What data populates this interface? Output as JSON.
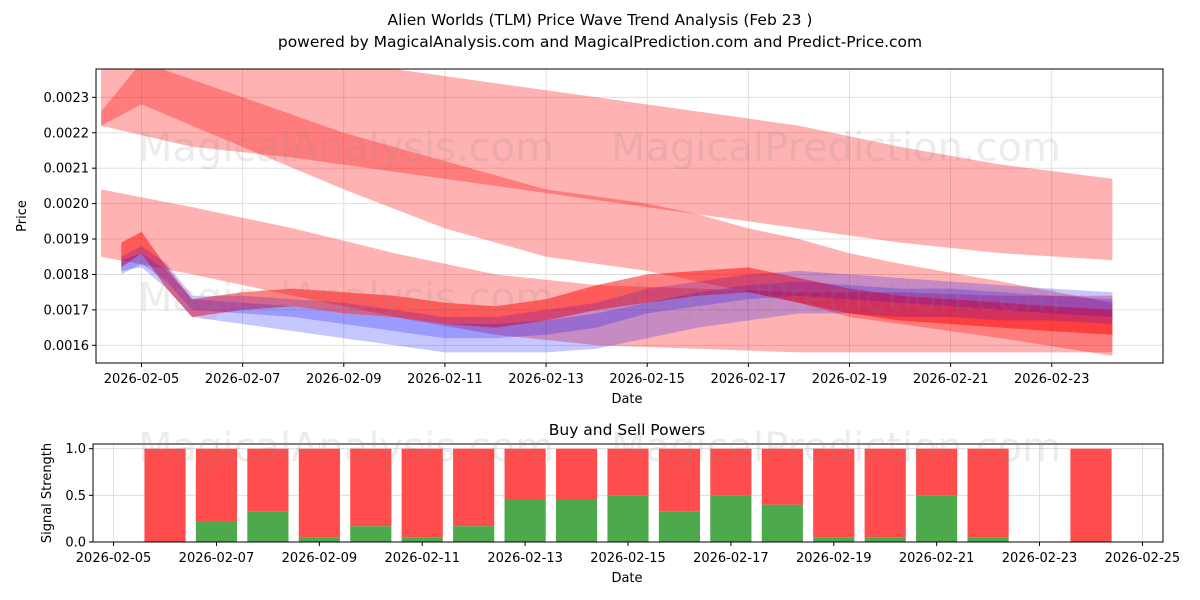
{
  "header": {
    "title": "Alien Worlds (TLM) Price Wave Trend Analysis (Feb 23 )",
    "subtitle": "powered by MagicalAnalysis.com and MagicalPrediction.com and Predict-Price.com"
  },
  "watermarks": {
    "left": "MagicalAnalysis.com",
    "right": "MagicalPrediction.com"
  },
  "colors": {
    "red": "#ff0000",
    "blue": "#0000ff",
    "buy": "#4caa4c",
    "sell": "#ff4c4c"
  },
  "chart_data": [
    {
      "type": "area",
      "title": "",
      "xlabel": "Date",
      "ylabel": "Price",
      "xlim": [
        "2026-02-04.1",
        "2026-02-25.2"
      ],
      "ylim": [
        0.00155,
        0.00238
      ],
      "grid": true,
      "x_ticks": [
        "2026-02-05",
        "2026-02-07",
        "2026-02-09",
        "2026-02-11",
        "2026-02-13",
        "2026-02-15",
        "2026-02-17",
        "2026-02-19",
        "2026-02-21",
        "2026-02-23"
      ],
      "y_ticks": [
        "0.0016",
        "0.0017",
        "0.0018",
        "0.0019",
        "0.0020",
        "0.0021",
        "0.0022",
        "0.0023"
      ],
      "red_bands": [
        {
          "x": [
            4.2,
            6,
            8,
            10,
            12,
            14,
            16,
            18,
            20,
            22,
            24.2
          ],
          "lower": [
            0.00222,
            0.00216,
            0.00213,
            0.00209,
            0.00205,
            0.00201,
            0.00197,
            0.00193,
            0.00189,
            0.00186,
            0.00184
          ],
          "upper": [
            0.0024,
            0.0024,
            0.0024,
            0.00238,
            0.00234,
            0.0023,
            0.00226,
            0.00222,
            0.00216,
            0.00211,
            0.00207
          ]
        },
        {
          "x": [
            4.2,
            5,
            7,
            9,
            11,
            13,
            15,
            16,
            17,
            18,
            19,
            20,
            22,
            24.2
          ],
          "lower": [
            0.00222,
            0.00228,
            0.00216,
            0.00204,
            0.00193,
            0.00185,
            0.00181,
            0.00178,
            0.00175,
            0.00172,
            0.00168,
            0.00166,
            0.00162,
            0.00157
          ],
          "upper": [
            0.00226,
            0.0024,
            0.0023,
            0.0022,
            0.00212,
            0.00204,
            0.002,
            0.00197,
            0.00193,
            0.0019,
            0.00186,
            0.00183,
            0.00178,
            0.00172
          ]
        },
        {
          "x": [
            4.2,
            6,
            8,
            10,
            12,
            14,
            16,
            18,
            20,
            22,
            24.2
          ],
          "lower": [
            0.00185,
            0.0018,
            0.00174,
            0.00168,
            0.00163,
            0.0016,
            0.00159,
            0.00158,
            0.00158,
            0.00158,
            0.00158
          ],
          "upper": [
            0.00204,
            0.00199,
            0.00193,
            0.00186,
            0.0018,
            0.00177,
            0.00176,
            0.00175,
            0.00175,
            0.00174,
            0.00174
          ]
        },
        {
          "x": [
            4.6,
            5,
            5.5,
            6,
            7,
            8,
            9,
            10,
            11,
            12,
            13,
            14,
            15,
            16,
            17,
            18,
            19,
            20,
            21,
            22,
            23,
            24.2
          ],
          "lower": [
            0.00182,
            0.00186,
            0.00176,
            0.00168,
            0.0017,
            0.00171,
            0.00169,
            0.00168,
            0.00166,
            0.00165,
            0.00167,
            0.0017,
            0.00172,
            0.00174,
            0.00175,
            0.00172,
            0.00169,
            0.00167,
            0.00166,
            0.00165,
            0.00164,
            0.00163
          ],
          "upper": [
            0.00189,
            0.00192,
            0.00182,
            0.00173,
            0.00175,
            0.00176,
            0.00175,
            0.00174,
            0.00172,
            0.00171,
            0.00173,
            0.00177,
            0.0018,
            0.00181,
            0.00182,
            0.00179,
            0.00176,
            0.00174,
            0.00173,
            0.00172,
            0.00171,
            0.0017
          ]
        }
      ],
      "blue_bands": [
        {
          "x": [
            4.6,
            5,
            5.5,
            6,
            7,
            8,
            9,
            10,
            11,
            12,
            13,
            14,
            15,
            16,
            17,
            18,
            19,
            20,
            21,
            22,
            23,
            24.2
          ],
          "lower": [
            0.0018,
            0.00183,
            0.00178,
            0.0017,
            0.00169,
            0.00168,
            0.00166,
            0.00164,
            0.00162,
            0.00162,
            0.00163,
            0.00165,
            0.00169,
            0.00171,
            0.00173,
            0.00174,
            0.00173,
            0.00172,
            0.00171,
            0.0017,
            0.00169,
            0.00168
          ],
          "upper": [
            0.00185,
            0.00188,
            0.00183,
            0.00174,
            0.00174,
            0.00173,
            0.00172,
            0.0017,
            0.00168,
            0.00168,
            0.0017,
            0.00172,
            0.00176,
            0.00178,
            0.0018,
            0.00181,
            0.0018,
            0.00179,
            0.00178,
            0.00177,
            0.00176,
            0.00175
          ]
        },
        {
          "x": [
            4.6,
            5,
            5.5,
            6,
            7,
            8,
            9,
            10,
            11,
            12,
            13,
            14,
            15,
            16,
            17,
            18,
            19,
            20,
            21,
            22,
            23,
            24.2
          ],
          "lower": [
            0.00181,
            0.00182,
            0.00176,
            0.00168,
            0.00166,
            0.00164,
            0.00162,
            0.0016,
            0.00158,
            0.00158,
            0.00158,
            0.00159,
            0.00162,
            0.00165,
            0.00167,
            0.00169,
            0.00169,
            0.00168,
            0.00168,
            0.00167,
            0.00167,
            0.00166
          ],
          "upper": [
            0.00184,
            0.00186,
            0.00181,
            0.00173,
            0.00172,
            0.00171,
            0.00169,
            0.00168,
            0.00166,
            0.00166,
            0.00167,
            0.00169,
            0.00172,
            0.00175,
            0.00177,
            0.00178,
            0.00177,
            0.00176,
            0.00176,
            0.00175,
            0.00174,
            0.00173
          ]
        }
      ]
    },
    {
      "type": "bar",
      "title": "Buy and Sell Powers",
      "xlabel": "Date",
      "ylabel": "Signal Strength",
      "xlim": [
        "2026-02-04.6",
        "2026-02-25.4"
      ],
      "ylim": [
        0,
        1.05
      ],
      "grid": true,
      "x_ticks": [
        "2026-02-05",
        "2026-02-07",
        "2026-02-09",
        "2026-02-11",
        "2026-02-13",
        "2026-02-15",
        "2026-02-17",
        "2026-02-19",
        "2026-02-21",
        "2026-02-23",
        "2026-02-25"
      ],
      "y_ticks": [
        "0.0",
        "0.5",
        "1.0"
      ],
      "categories": [
        "2026-02-06",
        "2026-02-07",
        "2026-02-08",
        "2026-02-09",
        "2026-02-10",
        "2026-02-11",
        "2026-02-12",
        "2026-02-13",
        "2026-02-14",
        "2026-02-15",
        "2026-02-16",
        "2026-02-17",
        "2026-02-18",
        "2026-02-19",
        "2026-02-20",
        "2026-02-21",
        "2026-02-22",
        "2026-02-23",
        "2026-02-24"
      ],
      "series": [
        {
          "name": "Buy",
          "values": [
            0.0,
            0.22,
            0.33,
            0.05,
            0.17,
            0.05,
            0.17,
            0.45,
            0.45,
            0.5,
            0.33,
            0.5,
            0.4,
            0.05,
            0.05,
            0.5,
            0.05,
            0.0,
            0.0
          ]
        },
        {
          "name": "Sell",
          "values": [
            1.0,
            0.78,
            0.67,
            0.95,
            0.83,
            0.95,
            0.83,
            0.55,
            0.55,
            0.5,
            0.67,
            0.5,
            0.6,
            0.95,
            0.95,
            0.5,
            0.95,
            0.0,
            1.0
          ]
        }
      ]
    }
  ]
}
